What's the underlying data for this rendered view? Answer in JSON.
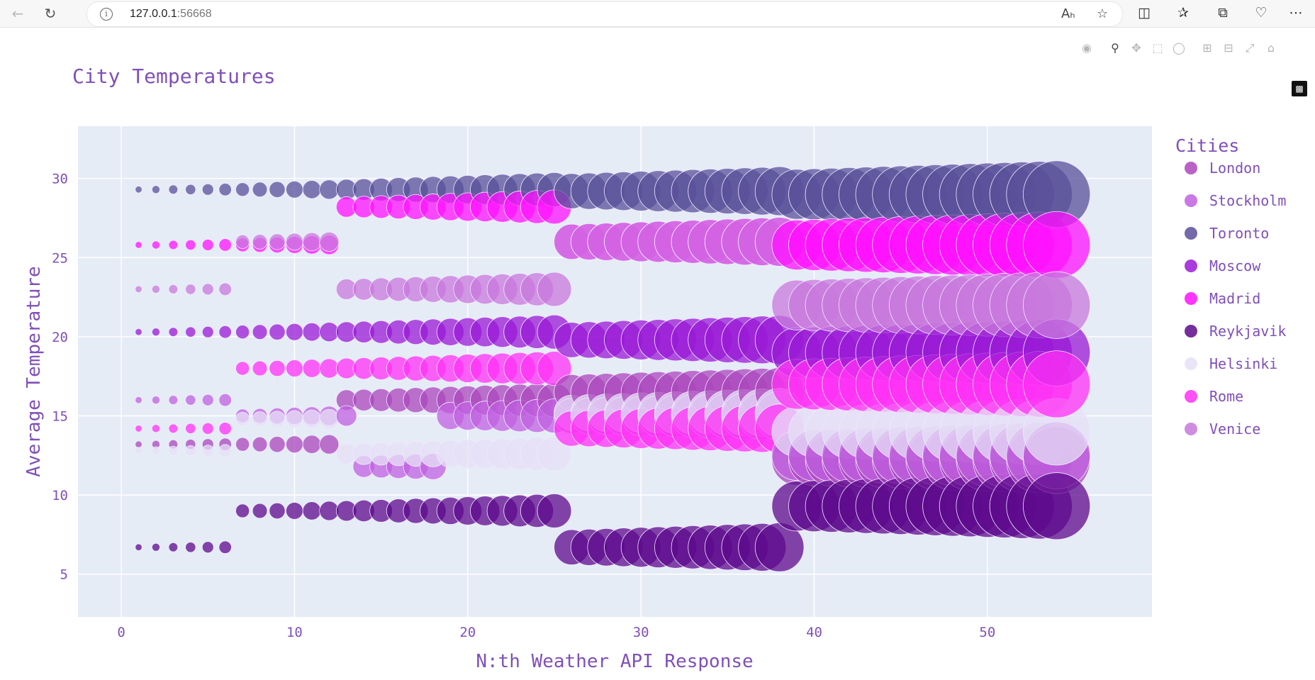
{
  "browser": {
    "url_host": "127.0.0.1",
    "url_port": ":56668"
  },
  "chart_data": {
    "type": "scatter",
    "mode": "bubble",
    "title": "City Temperatures",
    "xlabel": "N:th Weather API Response",
    "ylabel": "Average Temperature",
    "legend_title": "Cities",
    "legend_position": "right",
    "xlim": [
      -2.5,
      59.5
    ],
    "ylim": [
      2.3,
      33.3
    ],
    "xticks": [
      0,
      10,
      20,
      30,
      40,
      50
    ],
    "yticks": [
      5,
      10,
      15,
      20,
      25,
      30
    ],
    "grid": true,
    "plot_bgcolor": "#e5ecf6",
    "font_color": "#8050b8",
    "series": [
      {
        "name": "London",
        "color": "#ab47bc",
        "segments": [
          [
            1,
            7,
            13.2
          ],
          [
            7,
            13,
            13.2
          ],
          [
            13,
            26,
            16.0
          ],
          [
            26,
            39,
            16.5
          ],
          [
            39,
            54,
            12.2
          ]
        ]
      },
      {
        "name": "Stockholm",
        "color": "#c060e0",
        "segments": [
          [
            1,
            7,
            16.0
          ],
          [
            7,
            14,
            15.0
          ],
          [
            14,
            19,
            11.8
          ],
          [
            19,
            26,
            15.0
          ],
          [
            26,
            39,
            15.0
          ],
          [
            39,
            54,
            12.5
          ]
        ]
      },
      {
        "name": "Toronto",
        "color": "#5a509a",
        "segments": [
          [
            1,
            7,
            29.3
          ],
          [
            7,
            13,
            29.3
          ],
          [
            13,
            26,
            29.3
          ],
          [
            26,
            39,
            29.2
          ],
          [
            39,
            54,
            29.0
          ]
        ]
      },
      {
        "name": "Moscow",
        "color": "#9a1ad6",
        "segments": [
          [
            1,
            7,
            20.3
          ],
          [
            7,
            13,
            20.3
          ],
          [
            13,
            26,
            20.3
          ],
          [
            26,
            39,
            19.8
          ],
          [
            39,
            54,
            19.0
          ]
        ]
      },
      {
        "name": "Madrid",
        "color": "#ff10ff",
        "segments": [
          [
            1,
            7,
            25.8
          ],
          [
            7,
            13,
            25.8
          ],
          [
            13,
            26,
            28.2
          ],
          [
            26,
            39,
            26.0
          ],
          [
            39,
            54,
            25.8
          ]
        ]
      },
      {
        "name": "Reykjavik",
        "color": "#5d0a8c",
        "segments": [
          [
            1,
            7,
            6.7
          ],
          [
            7,
            13,
            9.0
          ],
          [
            13,
            26,
            9.0
          ],
          [
            26,
            39,
            6.7
          ],
          [
            39,
            54,
            9.3
          ]
        ]
      },
      {
        "name": "Helsinki",
        "color": "#e6e0f5",
        "segments": [
          [
            1,
            7,
            12.8
          ],
          [
            7,
            13,
            14.8
          ],
          [
            13,
            26,
            12.6
          ],
          [
            26,
            39,
            15.2
          ],
          [
            39,
            54,
            14.0
          ]
        ]
      },
      {
        "name": "Rome",
        "color": "#ff30f5",
        "segments": [
          [
            1,
            7,
            14.2
          ],
          [
            7,
            13,
            18.0
          ],
          [
            13,
            26,
            18.0
          ],
          [
            26,
            39,
            14.2
          ],
          [
            39,
            54,
            17.0
          ]
        ]
      },
      {
        "name": "Venice",
        "color": "#c878dc",
        "segments": [
          [
            1,
            7,
            23.0
          ],
          [
            7,
            13,
            26.0
          ],
          [
            13,
            26,
            23.0
          ],
          [
            26,
            39,
            26.0
          ],
          [
            39,
            54,
            22.0
          ]
        ]
      }
    ]
  }
}
